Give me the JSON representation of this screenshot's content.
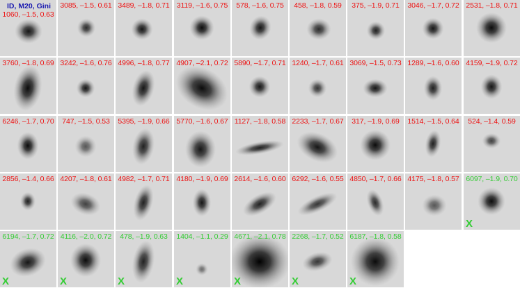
{
  "header_key": {
    "text": "ID,  M20,  Gini",
    "color": "#1a1ab0"
  },
  "colors": {
    "red": "#ee1111",
    "green": "#33cc33"
  },
  "rows": [
    [
      {
        "label": "1060, –1.5, 0.63",
        "color": "red",
        "mark": ""
      },
      {
        "label": "3085, –1.5, 0.61",
        "color": "red",
        "mark": ""
      },
      {
        "label": "3489, –1.8, 0.71",
        "color": "red",
        "mark": ""
      },
      {
        "label": "3119, –1.6, 0.75",
        "color": "red",
        "mark": ""
      },
      {
        "label": "578, –1.6, 0.75",
        "color": "red",
        "mark": ""
      },
      {
        "label": "458, –1.8, 0.59",
        "color": "red",
        "mark": ""
      },
      {
        "label": "375, –1.9, 0.71",
        "color": "red",
        "mark": ""
      },
      {
        "label": "3046, –1.7, 0.72",
        "color": "red",
        "mark": ""
      },
      {
        "label": "2531, –1.8, 0.71",
        "color": "red",
        "mark": ""
      }
    ],
    [
      {
        "label": "3760, –1.8, 0.69",
        "color": "red",
        "mark": ""
      },
      {
        "label": "3242, –1.6, 0.76",
        "color": "red",
        "mark": ""
      },
      {
        "label": "4996, –1.8, 0.77",
        "color": "red",
        "mark": ""
      },
      {
        "label": "4907, –2.1, 0.72",
        "color": "red",
        "mark": ""
      },
      {
        "label": "5890, –1.7, 0.71",
        "color": "red",
        "mark": ""
      },
      {
        "label": "1240, –1.7, 0.61",
        "color": "red",
        "mark": ""
      },
      {
        "label": "3069, –1.5, 0.73",
        "color": "red",
        "mark": ""
      },
      {
        "label": "1289, –1.6, 0.60",
        "color": "red",
        "mark": ""
      },
      {
        "label": "4159, –1.9, 0.72",
        "color": "red",
        "mark": ""
      }
    ],
    [
      {
        "label": "6246, –1.7, 0.70",
        "color": "red",
        "mark": ""
      },
      {
        "label": "747, –1.5, 0.53",
        "color": "red",
        "mark": ""
      },
      {
        "label": "5395, –1.9, 0.66",
        "color": "red",
        "mark": ""
      },
      {
        "label": "5770, –1.6, 0.67",
        "color": "red",
        "mark": ""
      },
      {
        "label": "1127, –1.8, 0.58",
        "color": "red",
        "mark": ""
      },
      {
        "label": "2233, –1.7, 0.67",
        "color": "red",
        "mark": ""
      },
      {
        "label": "317, –1.9, 0.69",
        "color": "red",
        "mark": ""
      },
      {
        "label": "1514, –1.5, 0.64",
        "color": "red",
        "mark": ""
      },
      {
        "label": "524, –1.4, 0.59",
        "color": "red",
        "mark": ""
      }
    ],
    [
      {
        "label": "2856, –1.4, 0.66",
        "color": "red",
        "mark": ""
      },
      {
        "label": "4207, –1.8, 0.61",
        "color": "red",
        "mark": ""
      },
      {
        "label": "4982, –1.7, 0.71",
        "color": "red",
        "mark": ""
      },
      {
        "label": "4180, –1.9, 0.69",
        "color": "red",
        "mark": ""
      },
      {
        "label": "2614, –1.6, 0.60",
        "color": "red",
        "mark": ""
      },
      {
        "label": "6292, –1.6, 0.55",
        "color": "red",
        "mark": ""
      },
      {
        "label": "4850, –1.7, 0.66",
        "color": "red",
        "mark": ""
      },
      {
        "label": "4175, –1.8, 0.57",
        "color": "red",
        "mark": ""
      },
      {
        "label": "6097, –1.9, 0.70",
        "color": "green",
        "mark": "X"
      }
    ],
    [
      {
        "label": "6194, –1.7, 0.72",
        "color": "green",
        "mark": "X"
      },
      {
        "label": "4116, –2.0, 0.72",
        "color": "green",
        "mark": "X"
      },
      {
        "label": "478, –1.9, 0.63",
        "color": "green",
        "mark": "X"
      },
      {
        "label": "1404, –1.1, 0.29",
        "color": "green",
        "mark": "X"
      },
      {
        "label": "4671, –2.1, 0.78",
        "color": "green",
        "mark": "X"
      },
      {
        "label": "2268, –1.7, 0.52",
        "color": "green",
        "mark": "X"
      },
      {
        "label": "6187, –1.8, 0.58",
        "color": "green",
        "mark": "X"
      }
    ]
  ]
}
